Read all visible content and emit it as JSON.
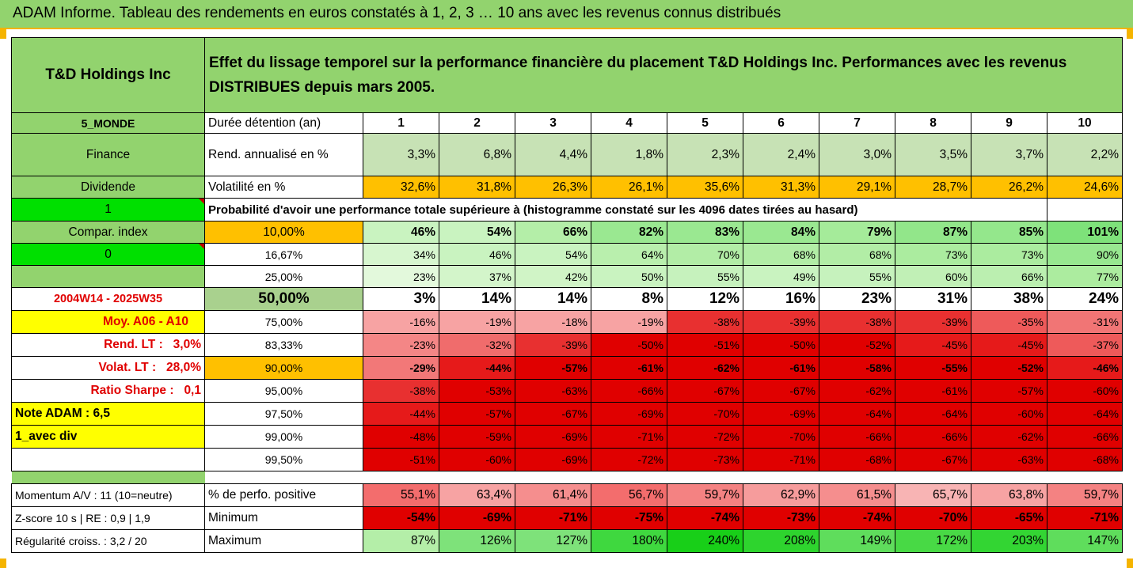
{
  "title": "ADAM Informe. Tableau des rendements en euros constatés à 1, 2, 3 … 10 ans avec les revenus connus distribués",
  "company": "T&D Holdings Inc",
  "description": "Effet du lissage temporel sur la performance financière du placement T&D Holdings Inc. Performances avec les revenus DISTRIBUES depuis mars 2005.",
  "colors": {
    "header_green": "#92d36e",
    "orange": "#ffc000",
    "yellow": "#ffff00",
    "bright_green": "#00e000",
    "red_label": "#e00000"
  },
  "years_label": "Durée détention (an)",
  "years": [
    "1",
    "2",
    "3",
    "4",
    "5",
    "6",
    "7",
    "8",
    "9",
    "10"
  ],
  "prob_title": "Probabilité d'avoir une performance totale supérieure à (histogramme constaté sur les 4096 dates tirées au hasard)",
  "left": {
    "monde": "5_MONDE",
    "finance": "Finance",
    "dividende": "Dividende",
    "one": "1",
    "compar": "Compar. index",
    "zero": "0",
    "blank": "",
    "period": "2004W14 - 2025W35",
    "moy": "Moy. A06 - A10",
    "rend_lt_label": "Rend. LT :",
    "rend_lt_value": "3,0%",
    "volat_lt_label": "Volat. LT :",
    "volat_lt_value": "28,0%",
    "sharpe_label": "Ratio Sharpe :",
    "sharpe_value": "0,1",
    "note": "Note ADAM : 6,5",
    "avec_div": "1_avec div",
    "momentum": "Momentum A/V : 11 (10=neutre)",
    "zscore": "Z-score 10 s  | RE : 0,9 | 1,9",
    "regularite": "Régularité croiss. : 3,2 / 20"
  },
  "summary_rows": [
    {
      "label": "Rend. annualisé en %",
      "values": [
        "3,3%",
        "6,8%",
        "4,4%",
        "1,8%",
        "2,3%",
        "2,4%",
        "3,0%",
        "3,5%",
        "3,7%",
        "2,2%"
      ],
      "bg": [
        "#c7e2b5",
        "#c7e2b5",
        "#c7e2b5",
        "#c7e2b5",
        "#c7e2b5",
        "#c7e2b5",
        "#c7e2b5",
        "#c7e2b5",
        "#c7e2b5",
        "#c7e2b5"
      ]
    },
    {
      "label": "Volatilité en %",
      "values": [
        "32,6%",
        "31,8%",
        "26,3%",
        "26,1%",
        "35,6%",
        "31,3%",
        "29,1%",
        "28,7%",
        "26,2%",
        "24,6%"
      ],
      "bg": [
        "#ffc000",
        "#ffc000",
        "#ffc000",
        "#ffc000",
        "#ffc000",
        "#ffc000",
        "#ffc000",
        "#ffc000",
        "#ffc000",
        "#ffc000"
      ]
    }
  ],
  "prob_rows": [
    {
      "label": "10,00%",
      "values": [
        "46%",
        "54%",
        "66%",
        "82%",
        "83%",
        "84%",
        "79%",
        "87%",
        "85%",
        "101%"
      ],
      "bg": [
        "#c9f3c0",
        "#c9f3c0",
        "#b4eea8",
        "#9ae891",
        "#9ae891",
        "#9ae891",
        "#a5eb9a",
        "#92e68a",
        "#94e78c",
        "#7ee27a"
      ]
    },
    {
      "label": "16,67%",
      "values": [
        "34%",
        "46%",
        "54%",
        "64%",
        "70%",
        "68%",
        "68%",
        "73%",
        "73%",
        "90%"
      ],
      "bg": [
        "#d7f6cf",
        "#c9f3c0",
        "#c9f3c0",
        "#b9efad",
        "#b2eda6",
        "#b2eda6",
        "#b2eda6",
        "#abec9f",
        "#abec9f",
        "#98e890"
      ]
    },
    {
      "label": "25,00%",
      "values": [
        "23%",
        "37%",
        "42%",
        "50%",
        "55%",
        "49%",
        "55%",
        "60%",
        "66%",
        "77%"
      ],
      "bg": [
        "#e3f9dc",
        "#d3f5ca",
        "#d0f4c6",
        "#c9f3c0",
        "#c6f2bd",
        "#c9f3c0",
        "#c6f2bd",
        "#c1f0b6",
        "#bbefb0",
        "#acec9f"
      ]
    },
    {
      "label": "50,00%",
      "values": [
        "3%",
        "14%",
        "14%",
        "8%",
        "12%",
        "16%",
        "23%",
        "31%",
        "38%",
        "24%"
      ],
      "bg": [
        "#ffffff",
        "#ffffff",
        "#ffffff",
        "#ffffff",
        "#ffffff",
        "#ffffff",
        "#ffffff",
        "#ffffff",
        "#ffffff",
        "#ffffff"
      ]
    },
    {
      "label": "75,00%",
      "values": [
        "-16%",
        "-19%",
        "-18%",
        "-19%",
        "-38%",
        "-39%",
        "-38%",
        "-39%",
        "-35%",
        "-31%"
      ],
      "bg": [
        "#f7a3a3",
        "#f7a3a3",
        "#f7a3a3",
        "#f7a3a3",
        "#e83030",
        "#e83030",
        "#e83030",
        "#e83030",
        "#ee5a5a",
        "#f17575"
      ]
    },
    {
      "label": "83,33%",
      "values": [
        "-23%",
        "-32%",
        "-39%",
        "-50%",
        "-51%",
        "-50%",
        "-52%",
        "-45%",
        "-45%",
        "-37%"
      ],
      "bg": [
        "#f48686",
        "#f06c6c",
        "#e83030",
        "#e00000",
        "#e00000",
        "#e00000",
        "#e00000",
        "#e61a1a",
        "#e61a1a",
        "#ee5a5a"
      ]
    },
    {
      "label": "90,00%",
      "values": [
        "-29%",
        "-44%",
        "-57%",
        "-61%",
        "-62%",
        "-61%",
        "-58%",
        "-55%",
        "-52%",
        "-46%"
      ],
      "bg": [
        "#f27878",
        "#e61a1a",
        "#e00000",
        "#e00000",
        "#e00000",
        "#e00000",
        "#e00000",
        "#e00000",
        "#e00000",
        "#e61a1a"
      ]
    },
    {
      "label": "95,00%",
      "values": [
        "-38%",
        "-53%",
        "-63%",
        "-66%",
        "-67%",
        "-67%",
        "-62%",
        "-61%",
        "-57%",
        "-60%"
      ],
      "bg": [
        "#e83030",
        "#e00000",
        "#e00000",
        "#e00000",
        "#e00000",
        "#e00000",
        "#e00000",
        "#e00000",
        "#e00000",
        "#e00000"
      ]
    },
    {
      "label": "97,50%",
      "values": [
        "-44%",
        "-57%",
        "-67%",
        "-69%",
        "-70%",
        "-69%",
        "-64%",
        "-64%",
        "-60%",
        "-64%"
      ],
      "bg": [
        "#e61a1a",
        "#e00000",
        "#e00000",
        "#e00000",
        "#e00000",
        "#e00000",
        "#e00000",
        "#e00000",
        "#e00000",
        "#e00000"
      ]
    },
    {
      "label": "99,00%",
      "values": [
        "-48%",
        "-59%",
        "-69%",
        "-71%",
        "-72%",
        "-70%",
        "-66%",
        "-66%",
        "-62%",
        "-66%"
      ],
      "bg": [
        "#e00000",
        "#e00000",
        "#e00000",
        "#e00000",
        "#e00000",
        "#e00000",
        "#e00000",
        "#e00000",
        "#e00000",
        "#e00000"
      ]
    },
    {
      "label": "99,50%",
      "values": [
        "-51%",
        "-60%",
        "-69%",
        "-72%",
        "-73%",
        "-71%",
        "-68%",
        "-67%",
        "-63%",
        "-68%"
      ],
      "bg": [
        "#e00000",
        "#e00000",
        "#e00000",
        "#e00000",
        "#e00000",
        "#e00000",
        "#e00000",
        "#e00000",
        "#e00000",
        "#e00000"
      ]
    }
  ],
  "stats_rows": [
    {
      "label": "% de perfo. positive",
      "values": [
        "55,1%",
        "63,4%",
        "61,4%",
        "56,7%",
        "59,7%",
        "62,9%",
        "61,5%",
        "65,7%",
        "63,8%",
        "59,7%"
      ],
      "bg": [
        "#f36d6d",
        "#f7a3a3",
        "#f58e8e",
        "#f36d6d",
        "#f48282",
        "#f69c9c",
        "#f58e8e",
        "#f8b4b4",
        "#f7a3a3",
        "#f48282"
      ]
    },
    {
      "label": "Minimum",
      "values": [
        "-54%",
        "-69%",
        "-71%",
        "-75%",
        "-74%",
        "-73%",
        "-74%",
        "-70%",
        "-65%",
        "-71%"
      ],
      "bg": [
        "#e00000",
        "#e00000",
        "#e00000",
        "#e00000",
        "#e00000",
        "#e00000",
        "#e00000",
        "#e00000",
        "#e00000",
        "#e00000"
      ]
    },
    {
      "label": "Maximum",
      "values": [
        "87%",
        "126%",
        "127%",
        "180%",
        "240%",
        "208%",
        "149%",
        "172%",
        "203%",
        "147%"
      ],
      "bg": [
        "#b4eea8",
        "#7ee27a",
        "#7ee27a",
        "#3fd83f",
        "#18cf18",
        "#2ed42e",
        "#5fdd5c",
        "#48d945",
        "#33d533",
        "#5fdd5c"
      ]
    }
  ]
}
